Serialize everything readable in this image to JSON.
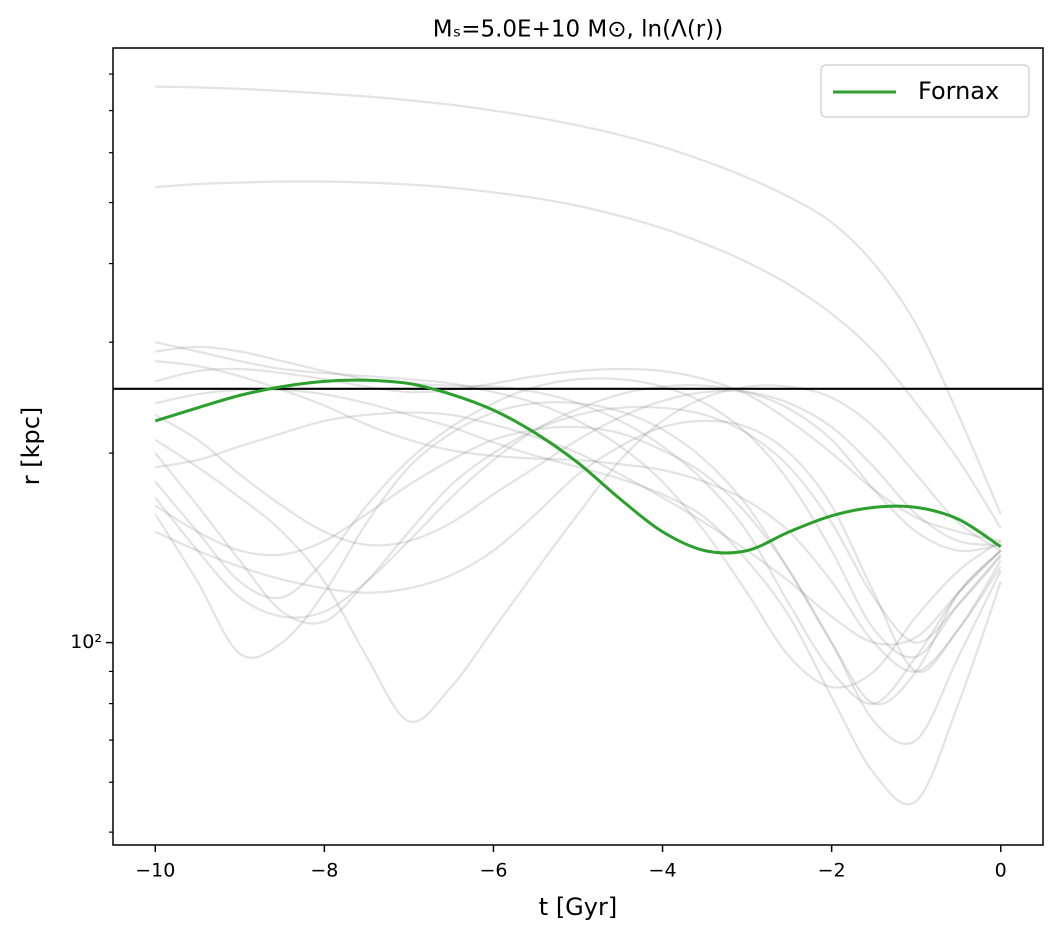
{
  "chart_data": {
    "type": "line",
    "title": "Mₛ=5.0E+10 M⊙, ln(Λ(r))",
    "x_label": "t [Gyr]",
    "y_label": "r [kpc]",
    "x": [
      -10,
      -9.5,
      -9,
      -8.5,
      -8,
      -7.5,
      -7,
      -6.5,
      -6,
      -5.5,
      -5,
      -4.5,
      -4,
      -3.5,
      -3,
      -2.5,
      -2,
      -1.5,
      -1,
      -0.5,
      0
    ],
    "xlim": [
      -10.5,
      0.5
    ],
    "xticks": [
      {
        "value": -10,
        "label": "−10"
      },
      {
        "value": -8,
        "label": "−8"
      },
      {
        "value": -6,
        "label": "−6"
      },
      {
        "value": -4,
        "label": "−4"
      },
      {
        "value": -2,
        "label": "−2"
      },
      0
    ],
    "ylim": [
      47.7,
      880
    ],
    "y_log": true,
    "yticks": [
      {
        "value": 100,
        "label": "10²"
      }
    ],
    "yminorticks": [
      50,
      60,
      70,
      80,
      90,
      200,
      300,
      400,
      500,
      600,
      700,
      800
    ],
    "hline": {
      "value": 253,
      "color": "#000000"
    },
    "legend_loc": "upper right",
    "series": [
      {
        "color": "#808080",
        "alpha": 0.22,
        "values": [
          764,
          762,
          758,
          752,
          745,
          737,
          727,
          715,
          700,
          683,
          663,
          640,
          613,
          582,
          548,
          510,
          465,
          400,
          320,
          230,
          160
        ]
      },
      {
        "color": "#808080",
        "alpha": 0.22,
        "values": [
          529,
          535,
          538,
          540,
          540,
          538,
          534,
          528,
          519,
          508,
          494,
          476,
          455,
          430,
          402,
          370,
          333,
          290,
          240,
          195,
          152
        ]
      },
      {
        "color": "#808080",
        "alpha": 0.22,
        "values": [
          300,
          290,
          280,
          272,
          268,
          265,
          262,
          258,
          250,
          240,
          225,
          205,
          180,
          150,
          120,
          95,
          85,
          90,
          110,
          130,
          145
        ]
      },
      {
        "color": "#808080",
        "alpha": 0.22,
        "values": [
          290,
          295,
          290,
          280,
          270,
          262,
          258,
          256,
          255,
          250,
          240,
          225,
          205,
          180,
          150,
          115,
          90,
          80,
          95,
          120,
          140
        ]
      },
      {
        "color": "#808080",
        "alpha": 0.22,
        "values": [
          180,
          150,
          125,
          118,
          135,
          165,
          195,
          220,
          240,
          255,
          262,
          262,
          255,
          240,
          215,
          180,
          140,
          105,
          95,
          115,
          138
        ]
      },
      {
        "color": "#808080",
        "alpha": 0.22,
        "values": [
          160,
          125,
          96,
          100,
          120,
          155,
          190,
          215,
          232,
          240,
          240,
          233,
          218,
          195,
          165,
          130,
          100,
          80,
          90,
          120,
          140
        ]
      },
      {
        "color": "#808080",
        "alpha": 0.22,
        "values": [
          200,
          165,
          135,
          112,
          108,
          125,
          150,
          178,
          200,
          218,
          230,
          236,
          236,
          230,
          215,
          190,
          155,
          118,
          100,
          115,
          137
        ]
      },
      {
        "color": "#808080",
        "alpha": 0.22,
        "values": [
          260,
          270,
          272,
          268,
          262,
          255,
          250,
          252,
          258,
          265,
          270,
          272,
          270,
          262,
          248,
          225,
          200,
          175,
          158,
          150,
          145
        ]
      },
      {
        "color": "#808080",
        "alpha": 0.22,
        "values": [
          170,
          140,
          118,
          110,
          112,
          125,
          145,
          170,
          195,
          218,
          235,
          248,
          255,
          256,
          250,
          235,
          210,
          175,
          150,
          140,
          143
        ]
      },
      {
        "color": "#808080",
        "alpha": 0.22,
        "values": [
          150,
          140,
          132,
          126,
          122,
          120,
          122,
          128,
          140,
          160,
          185,
          205,
          220,
          225,
          220,
          200,
          165,
          120,
          90,
          105,
          132
        ]
      },
      {
        "color": "#808080",
        "alpha": 0.22,
        "values": [
          210,
          190,
          170,
          150,
          125,
          95,
          75,
          85,
          105,
          130,
          160,
          195,
          225,
          245,
          255,
          255,
          245,
          220,
          185,
          155,
          140
        ]
      },
      {
        "color": "#808080",
        "alpha": 0.22,
        "values": [
          240,
          248,
          252,
          252,
          248,
          240,
          230,
          220,
          208,
          198,
          190,
          182,
          172,
          158,
          135,
          110,
          82,
          62,
          56,
          80,
          125
        ]
      },
      {
        "color": "#808080",
        "alpha": 0.22,
        "values": [
          280,
          275,
          265,
          252,
          238,
          222,
          210,
          202,
          198,
          196,
          195,
          192,
          188,
          180,
          168,
          150,
          125,
          100,
          90,
          105,
          135
        ]
      },
      {
        "color": "#808080",
        "alpha": 0.22,
        "values": [
          190,
          195,
          205,
          215,
          225,
          230,
          232,
          230,
          222,
          212,
          200,
          185,
          170,
          155,
          140,
          125,
          110,
          100,
          102,
          120,
          140
        ]
      },
      {
        "color": "#808080",
        "alpha": 0.22,
        "values": [
          230,
          210,
          185,
          165,
          150,
          143,
          145,
          155,
          172,
          190,
          210,
          228,
          242,
          250,
          250,
          240,
          220,
          190,
          160,
          145,
          143
        ]
      },
      {
        "color": "#808080",
        "alpha": 0.22,
        "values": [
          165,
          150,
          140,
          138,
          145,
          160,
          178,
          195,
          210,
          218,
          220,
          215,
          202,
          185,
          160,
          130,
          100,
          75,
          70,
          95,
          130
        ]
      },
      {
        "name": "Fornax",
        "color": "#2ca02c",
        "values": [
          225,
          236,
          247,
          255,
          260,
          261,
          258,
          248,
          234,
          215,
          193,
          169,
          150,
          140,
          140,
          150,
          159,
          164,
          164,
          157,
          142
        ]
      }
    ]
  }
}
